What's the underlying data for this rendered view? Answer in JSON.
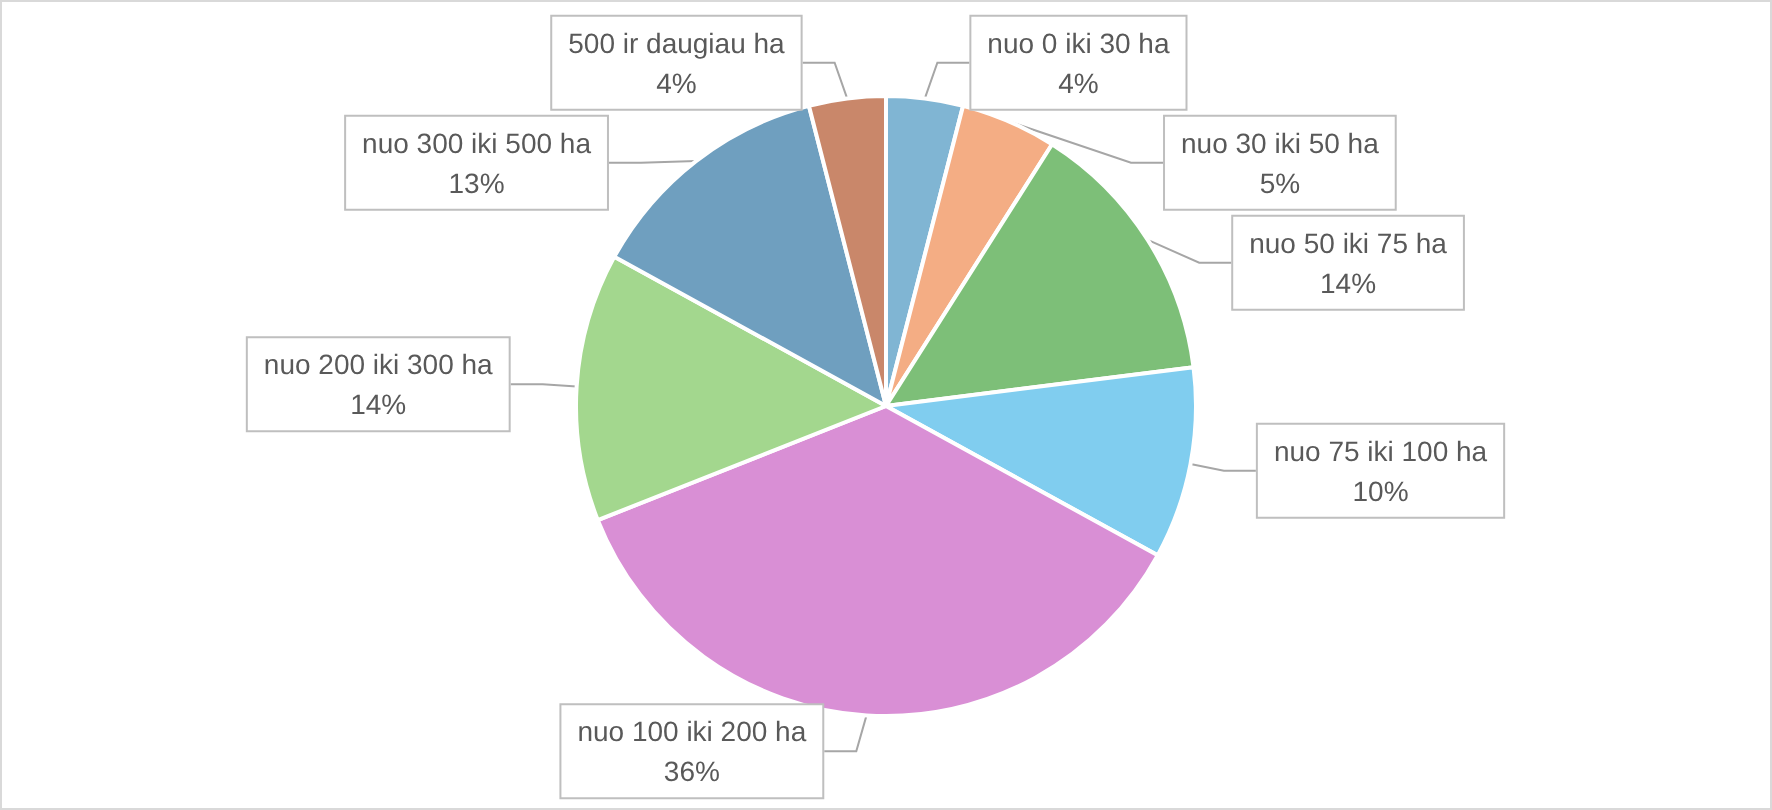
{
  "chart_data": {
    "type": "pie",
    "categories": [
      "nuo 0 iki 30 ha",
      "nuo 30 iki 50 ha",
      "nuo 50 iki 75 ha",
      "nuo 75 iki 100 ha",
      "nuo 100 iki 200 ha",
      "nuo 200 iki 300 ha",
      "nuo 300 iki 500 ha",
      "500 ir daugiau ha"
    ],
    "values": [
      4,
      5,
      14,
      10,
      36,
      14,
      13,
      4
    ],
    "value_labels": [
      "4%",
      "5%",
      "14%",
      "10%",
      "36%",
      "14%",
      "13%",
      "4%"
    ],
    "colors": [
      "#80b5d3",
      "#f4ad84",
      "#7dbf78",
      "#80cdef",
      "#d98fd5",
      "#a3d78e",
      "#6f9fbf",
      "#c9876a"
    ]
  }
}
